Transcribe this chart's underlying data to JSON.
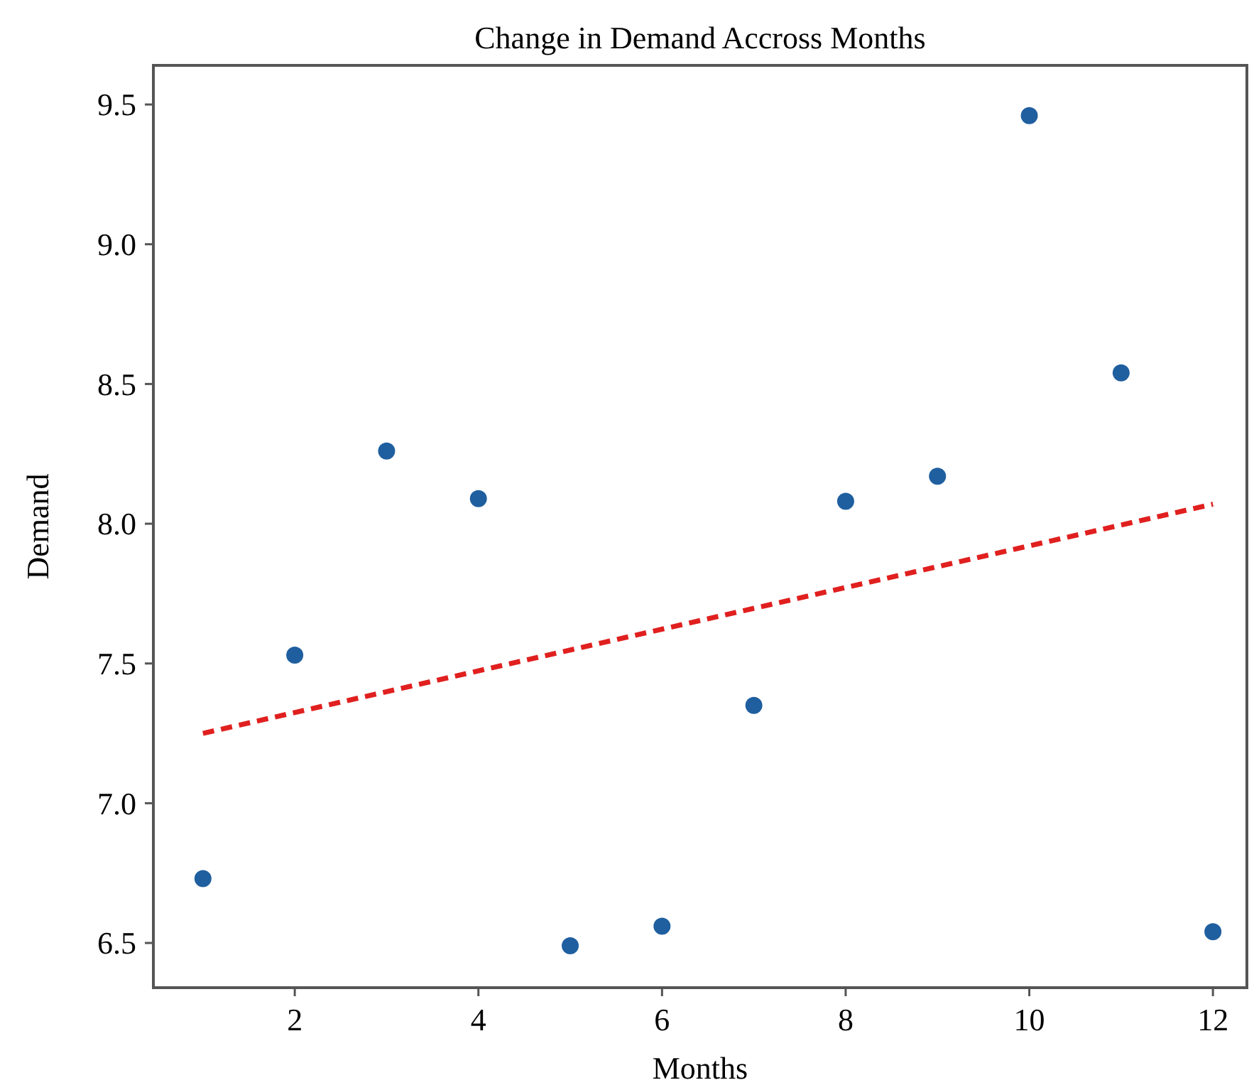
{
  "chart_data": {
    "type": "scatter",
    "title": "Change in Demand Accross Months",
    "xlabel": "Months",
    "ylabel": "Demand",
    "xlim": [
      0.46,
      12.37
    ],
    "xticks": [
      2,
      4,
      6,
      8,
      10,
      12
    ],
    "ylim": [
      6.34,
      9.64
    ],
    "yticks": [
      {
        "value": 6.5,
        "label": "6.5"
      },
      {
        "value": 7,
        "label": "7.0"
      },
      {
        "value": 7.5,
        "label": "7.5"
      },
      {
        "value": 8,
        "label": "8.0"
      },
      {
        "value": 8.5,
        "label": "8.5"
      },
      {
        "value": 9,
        "label": "9.0"
      },
      {
        "value": 9.5,
        "label": "9.5"
      }
    ],
    "grid": false,
    "marker": "circle",
    "series": [
      {
        "color": "#1f5f9f",
        "x": [
          1,
          2,
          3,
          4,
          5,
          6,
          7,
          8,
          9,
          10,
          11,
          12
        ],
        "values": [
          6.73,
          7.53,
          8.26,
          8.09,
          6.49,
          6.56,
          7.35,
          8.08,
          8.17,
          9.46,
          8.54,
          6.54
        ]
      },
      {
        "type": "line",
        "color": "#e0201f",
        "line_style": "dashed",
        "marker": "none",
        "x": [
          1,
          12
        ],
        "values": [
          7.25,
          8.07
        ]
      }
    ]
  }
}
